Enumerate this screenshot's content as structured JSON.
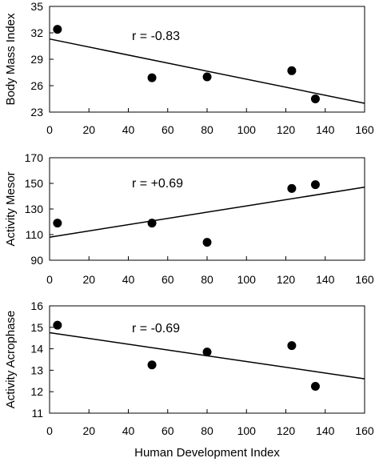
{
  "chart_data": [
    {
      "type": "scatter",
      "title": "",
      "xlabel": "",
      "ylabel": "Body Mass Index",
      "xlim": [
        0,
        160
      ],
      "ylim": [
        23,
        35
      ],
      "xticks": [
        0,
        20,
        40,
        60,
        80,
        100,
        120,
        140,
        160
      ],
      "yticks": [
        23,
        26,
        29,
        32,
        35
      ],
      "x": [
        4,
        52,
        80,
        123,
        135
      ],
      "y": [
        32.4,
        26.9,
        27.0,
        27.7,
        24.5
      ],
      "fit_line": {
        "x": [
          0,
          160
        ],
        "y": [
          31.3,
          24.0
        ]
      },
      "annotation": "r = -0.83",
      "grid": false
    },
    {
      "type": "scatter",
      "title": "",
      "xlabel": "",
      "ylabel": "Activity Mesor",
      "xlim": [
        0,
        160
      ],
      "ylim": [
        90,
        170
      ],
      "xticks": [
        0,
        20,
        40,
        60,
        80,
        100,
        120,
        140,
        160
      ],
      "yticks": [
        90,
        110,
        130,
        150,
        170
      ],
      "x": [
        4,
        52,
        80,
        123,
        135
      ],
      "y": [
        119,
        119,
        104,
        146,
        149
      ],
      "fit_line": {
        "x": [
          0,
          160
        ],
        "y": [
          108,
          147
        ]
      },
      "annotation": "r = +0.69",
      "grid": false
    },
    {
      "type": "scatter",
      "title": "",
      "xlabel": "Human Development Index",
      "ylabel": "Activity Acrophase",
      "xlim": [
        0,
        160
      ],
      "ylim": [
        11,
        16
      ],
      "xticks": [
        0,
        20,
        40,
        60,
        80,
        100,
        120,
        140,
        160
      ],
      "yticks": [
        11,
        12,
        13,
        14,
        15,
        16
      ],
      "x": [
        4,
        52,
        80,
        123,
        135
      ],
      "y": [
        15.1,
        13.25,
        13.85,
        14.15,
        12.25
      ],
      "fit_line": {
        "x": [
          0,
          160
        ],
        "y": [
          14.75,
          12.6
        ]
      },
      "annotation": "r = -0.69",
      "grid": false
    }
  ]
}
